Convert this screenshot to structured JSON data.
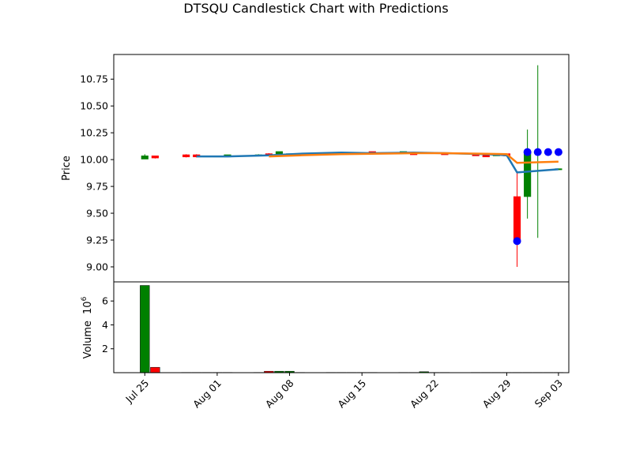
{
  "chart_data": {
    "type": "candlestick",
    "title": "DTSQU Candlestick Chart with Predictions",
    "dates": [
      "2024-07-25",
      "2024-07-26",
      "2024-07-29",
      "2024-07-30",
      "2024-07-31",
      "2024-08-01",
      "2024-08-02",
      "2024-08-05",
      "2024-08-06",
      "2024-08-07",
      "2024-08-08",
      "2024-08-09",
      "2024-08-12",
      "2024-08-13",
      "2024-08-14",
      "2024-08-15",
      "2024-08-16",
      "2024-08-19",
      "2024-08-20",
      "2024-08-21",
      "2024-08-22",
      "2024-08-23",
      "2024-08-26",
      "2024-08-27",
      "2024-08-28",
      "2024-08-29",
      "2024-08-30",
      "2024-08-31",
      "2024-09-01",
      "2024-09-02",
      "2024-09-03"
    ],
    "open": [
      10.01,
      10.03,
      10.04,
      10.04,
      10.03,
      10.03,
      10.03,
      10.04,
      10.05,
      10.04,
      10.05,
      10.05,
      10.06,
      10.06,
      10.06,
      10.06,
      10.07,
      10.07,
      10.06,
      10.06,
      10.06,
      10.06,
      10.05,
      10.05,
      10.04,
      10.05,
      9.65,
      9.66,
      10.07,
      10.07,
      9.91
    ],
    "close": [
      10.03,
      10.02,
      10.03,
      10.03,
      10.03,
      10.03,
      10.04,
      10.04,
      10.04,
      10.07,
      10.05,
      10.05,
      10.06,
      10.06,
      10.06,
      10.06,
      10.06,
      10.07,
      10.05,
      10.06,
      10.06,
      10.05,
      10.04,
      10.03,
      10.04,
      10.04,
      9.24,
      10.07,
      10.07,
      10.07,
      9.91
    ],
    "high": [
      10.05,
      10.03,
      10.05,
      10.05,
      10.03,
      10.03,
      10.04,
      10.05,
      10.06,
      10.07,
      10.05,
      10.05,
      10.06,
      10.06,
      10.06,
      10.06,
      10.07,
      10.07,
      10.06,
      10.06,
      10.06,
      10.06,
      10.05,
      10.05,
      10.05,
      10.05,
      9.88,
      10.28,
      10.88,
      10.07,
      9.91
    ],
    "low": [
      10.01,
      10.01,
      10.02,
      10.02,
      10.03,
      10.03,
      10.03,
      10.04,
      10.04,
      10.04,
      10.05,
      10.05,
      10.06,
      10.06,
      10.06,
      10.06,
      10.06,
      10.07,
      10.05,
      10.06,
      10.06,
      10.05,
      10.04,
      10.03,
      10.04,
      10.04,
      9.0,
      9.45,
      9.27,
      10.07,
      9.91
    ],
    "volume_millions": [
      7.3,
      0.45,
      0.02,
      0.02,
      0.02,
      0.02,
      0.02,
      0.02,
      0.12,
      0.12,
      0.12,
      0.02,
      0.02,
      0.02,
      0.02,
      0.02,
      0.02,
      0.02,
      0.02,
      0.08,
      0.02,
      0.02,
      0.02,
      0.02,
      0.02,
      0.02,
      0.02,
      0.02,
      0.02,
      0.02,
      0.02
    ],
    "predicted_points": [
      {
        "date": "2024-08-30",
        "value": 9.24
      },
      {
        "date": "2024-08-31",
        "value": 10.07
      },
      {
        "date": "2024-09-01",
        "value": 10.07
      },
      {
        "date": "2024-09-02",
        "value": 10.07
      },
      {
        "date": "2024-09-03",
        "value": 10.07
      }
    ],
    "line_series": [
      {
        "color": "#1f77b4",
        "dates": [
          "2024-07-30",
          "2024-08-02",
          "2024-08-06",
          "2024-08-09",
          "2024-08-13",
          "2024-08-16",
          "2024-08-20",
          "2024-08-23",
          "2024-08-27",
          "2024-08-29",
          "2024-08-30",
          "2024-09-03"
        ],
        "values": [
          10.03,
          10.03,
          10.04,
          10.055,
          10.065,
          10.06,
          10.065,
          10.06,
          10.05,
          10.04,
          9.88,
          9.91
        ]
      },
      {
        "color": "#ff7f0e",
        "dates": [
          "2024-08-06",
          "2024-08-09",
          "2024-08-13",
          "2024-08-16",
          "2024-08-20",
          "2024-08-23",
          "2024-08-27",
          "2024-08-29",
          "2024-08-30",
          "2024-09-03"
        ],
        "values": [
          10.03,
          10.04,
          10.05,
          10.055,
          10.06,
          10.06,
          10.055,
          10.05,
          9.97,
          9.98
        ]
      }
    ],
    "x_ticks": [
      {
        "date": "2024-07-25",
        "label": "Jul 25"
      },
      {
        "date": "2024-08-01",
        "label": "Aug 01"
      },
      {
        "date": "2024-08-08",
        "label": "Aug 08"
      },
      {
        "date": "2024-08-15",
        "label": "Aug 15"
      },
      {
        "date": "2024-08-22",
        "label": "Aug 22"
      },
      {
        "date": "2024-08-29",
        "label": "Aug 29"
      },
      {
        "date": "2024-09-03",
        "label": "Sep 03"
      }
    ],
    "price_axis": {
      "label": "Price",
      "ylim": [
        8.86,
        10.98
      ],
      "ticks": [
        9.0,
        9.25,
        9.5,
        9.75,
        10.0,
        10.25,
        10.5,
        10.75
      ],
      "tick_labels": [
        "9.00",
        "9.25",
        "9.50",
        "9.75",
        "10.00",
        "10.25",
        "10.50",
        "10.75"
      ]
    },
    "volume_axis": {
      "label": "Volume",
      "exponent_label": "10",
      "exponent": "6",
      "ylim": [
        0,
        7.6
      ],
      "ticks": [
        2,
        4,
        6
      ],
      "tick_labels": [
        "2",
        "4",
        "6"
      ]
    },
    "x_range": [
      "2024-07-22",
      "2024-09-04"
    ],
    "colors": {
      "up": "#008000",
      "down": "#ff0000",
      "prediction": "#0000ff"
    }
  }
}
